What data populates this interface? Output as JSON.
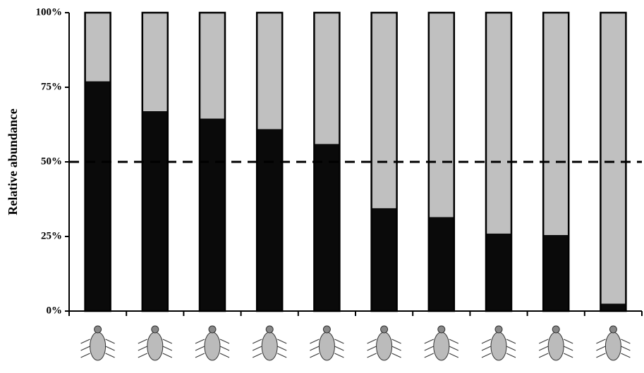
{
  "chart_data": {
    "type": "stacked-bar",
    "y_label": "Relative abundance",
    "categories": [
      null,
      null,
      null,
      null,
      null,
      null,
      null,
      null,
      null,
      null
    ],
    "series": [
      {
        "color": "#0a0a0a",
        "values": [
          77,
          67,
          64.5,
          61,
          56,
          34.5,
          31.5,
          26,
          25.5,
          2.5
        ]
      },
      {
        "color": "#c0c0c0",
        "values": [
          23,
          33,
          35.5,
          39,
          44,
          65.5,
          68.5,
          74,
          74.5,
          97.5
        ]
      }
    ],
    "ylim": [
      0,
      100
    ],
    "yticks": [
      {
        "value": 0,
        "label": "0%"
      },
      {
        "value": 25,
        "label": "25%"
      },
      {
        "value": 50,
        "label": "50%"
      },
      {
        "value": 75,
        "label": "75%"
      },
      {
        "value": 100,
        "label": "100%"
      }
    ],
    "reference_line": 50
  }
}
